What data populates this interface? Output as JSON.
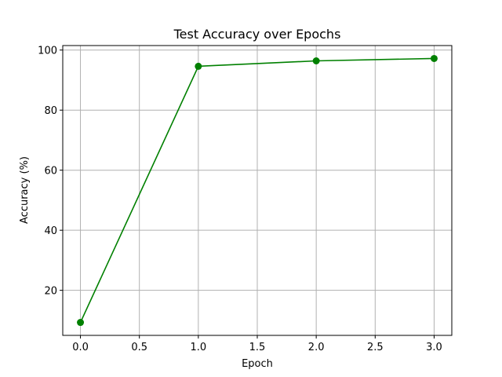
{
  "chart_data": {
    "type": "line",
    "title": "Test Accuracy over Epochs",
    "xlabel": "Epoch",
    "ylabel": "Accuracy (%)",
    "xlim": [
      -0.15,
      3.15
    ],
    "ylim": [
      5,
      101.5
    ],
    "xticks": [
      0.0,
      0.5,
      1.0,
      1.5,
      2.0,
      2.5,
      3.0
    ],
    "xtick_labels": [
      "0.0",
      "0.5",
      "1.0",
      "1.5",
      "2.0",
      "2.5",
      "3.0"
    ],
    "yticks": [
      20,
      40,
      60,
      80,
      100
    ],
    "ytick_labels": [
      "20",
      "40",
      "60",
      "80",
      "100"
    ],
    "grid": true,
    "series": [
      {
        "color": "#008000",
        "marker": "circle",
        "x": [
          0,
          1,
          2,
          3
        ],
        "values": [
          9.3,
          94.6,
          96.4,
          97.2
        ]
      }
    ]
  }
}
